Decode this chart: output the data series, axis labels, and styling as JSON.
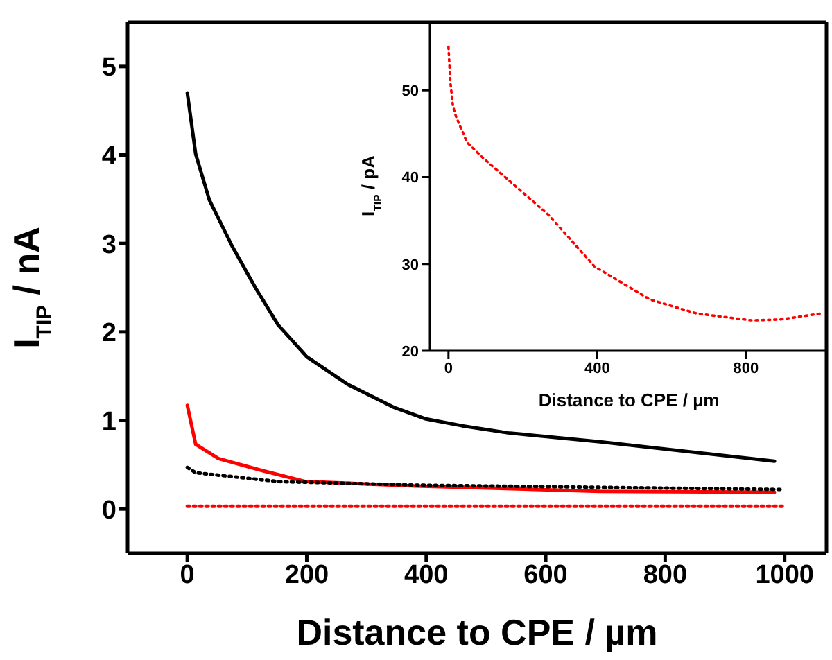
{
  "chart_data": [
    {
      "type": "line",
      "xlabel": "Distance to CPE / µm",
      "ylabel": "I$_{TIP}$ / nA",
      "xlim": [
        -100,
        1070
      ],
      "ylim": [
        -0.5,
        5.5
      ],
      "xticks": [
        0,
        200,
        400,
        600,
        800,
        1000
      ],
      "yticks": [
        0,
        1,
        2,
        3,
        4,
        5
      ],
      "marker": "none",
      "series": [
        {
          "color": "#000000",
          "line_style": "solid",
          "x": [
            0,
            14,
            37,
            75,
            114,
            152,
            200,
            268,
            345,
            398,
            460,
            537,
            691,
            983
          ],
          "values": [
            4.7,
            4.01,
            3.49,
            2.97,
            2.5,
            2.08,
            1.72,
            1.41,
            1.15,
            1.02,
            0.94,
            0.86,
            0.76,
            0.54
          ]
        },
        {
          "color": "#ff0000",
          "line_style": "solid",
          "x": [
            0,
            14,
            52,
            122,
            198,
            383,
            691,
            983
          ],
          "values": [
            1.17,
            0.73,
            0.57,
            0.44,
            0.31,
            0.26,
            0.2,
            0.19
          ]
        },
        {
          "color": "#000000",
          "line_style": "dotted",
          "x": [
            0,
            14,
            152,
            383,
            999
          ],
          "values": [
            0.47,
            0.41,
            0.31,
            0.27,
            0.22
          ]
        },
        {
          "color": "#ff0000",
          "line_style": "dotted",
          "x": [
            0,
            1000
          ],
          "values": [
            0.03,
            0.03
          ]
        }
      ]
    },
    {
      "type": "line",
      "xlabel": "Distance to CPE / µm",
      "ylabel": "I$_{TIP}$ / pA",
      "xlim": [
        -50,
        1020
      ],
      "ylim": [
        20,
        58
      ],
      "xticks": [
        0,
        400,
        800
      ],
      "yticks": [
        20,
        30,
        40,
        50
      ],
      "marker": "none",
      "series": [
        {
          "color": "#ff0000",
          "line_style": "dotted",
          "x": [
            0,
            5,
            12,
            20,
            50,
            93,
            268,
            393,
            542,
            667,
            816,
            891,
            1003
          ],
          "values": [
            55,
            51,
            48.2,
            47,
            44,
            42.2,
            35.7,
            29.7,
            25.9,
            24.3,
            23.5,
            23.6,
            24.3
          ]
        }
      ]
    }
  ]
}
